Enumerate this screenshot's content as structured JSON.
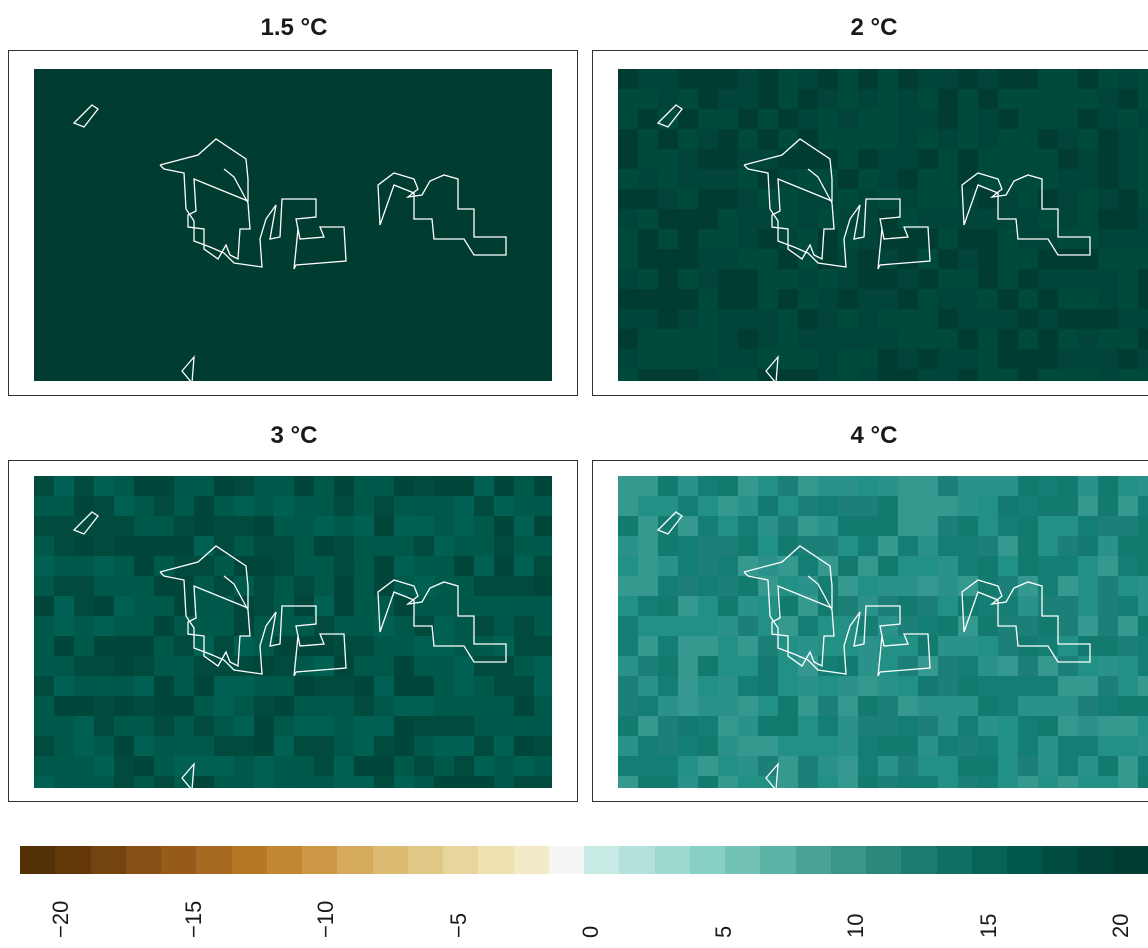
{
  "panels": [
    {
      "id": "p15",
      "title": "1.5 °C",
      "base": "#003d30",
      "jitter": [
        "#003d30",
        "#003d30"
      ]
    },
    {
      "id": "p2",
      "title": "2 °C",
      "base": "#004538",
      "jitter": [
        "#003d30",
        "#004a3c",
        "#00443a"
      ]
    },
    {
      "id": "p3",
      "title": "3 °C",
      "base": "#005044",
      "jitter": [
        "#00463a",
        "#004a3e",
        "#005a4c",
        "#006052",
        "#00584a"
      ]
    },
    {
      "id": "p4",
      "title": "4 °C",
      "base": "#1f8a80",
      "jitter": [
        "#137a70",
        "#1c8078",
        "#2a928a",
        "#35998f",
        "#239086",
        "#157e74"
      ]
    }
  ],
  "legend": {
    "colors": [
      "#543005",
      "#63390a",
      "#744410",
      "#854f15",
      "#965b1a",
      "#a7681f",
      "#b87627",
      "#c38734",
      "#cc9846",
      "#d5aa5b",
      "#dbba72",
      "#e2c887",
      "#e8d59c",
      "#efe1b2",
      "#f3ebc8",
      "#f5f5f5",
      "#c7eae5",
      "#b2e2db",
      "#9ed9d0",
      "#88cfc4",
      "#72c3b6",
      "#5db3a6",
      "#4ba398",
      "#3a958a",
      "#2b887d",
      "#1c7b70",
      "#0f6f64",
      "#056358",
      "#00574c",
      "#004c41",
      "#004237",
      "#003c30"
    ],
    "ticks": [
      "−20",
      "−15",
      "−10",
      "−5",
      "0",
      "5",
      "10",
      "15",
      "20"
    ]
  }
}
